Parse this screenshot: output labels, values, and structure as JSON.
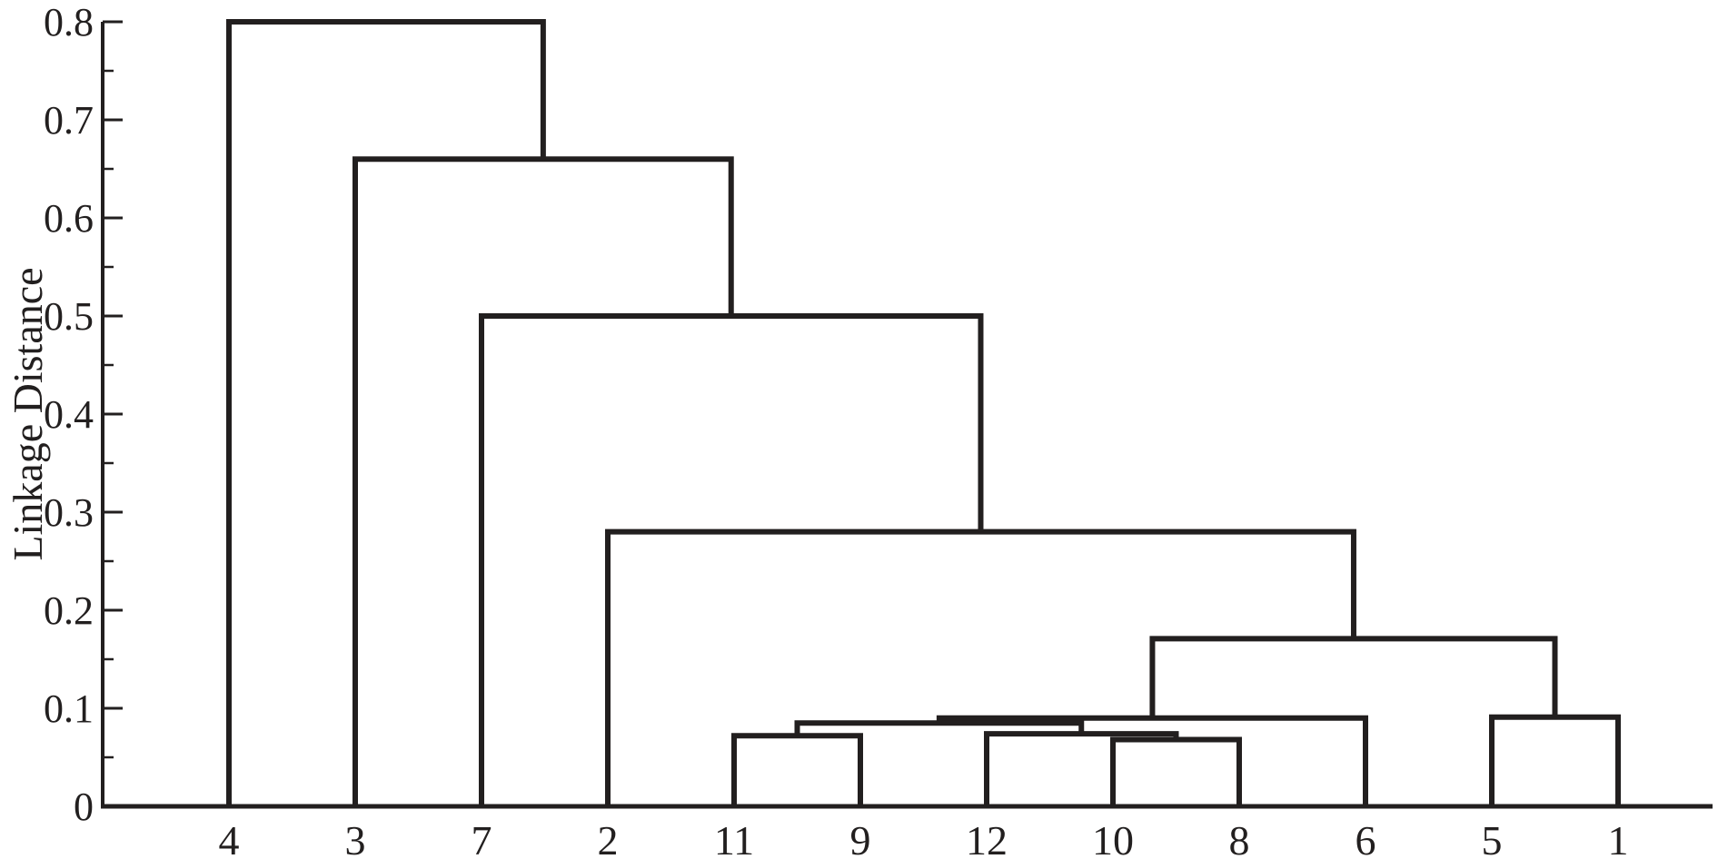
{
  "figure": {
    "background": "#ffffff",
    "line_color": "#221f1f",
    "axis_color": "#221f1f"
  },
  "chart_data": {
    "type": "dendrogram",
    "orientation": "top",
    "title": "",
    "xlabel": "",
    "ylabel": "Linkage Distance",
    "ylim": [
      0,
      0.8
    ],
    "grid": false,
    "legend": "none",
    "leaves": [
      "4",
      "3",
      "7",
      "2",
      "11",
      "9",
      "12",
      "10",
      "8",
      "6",
      "5",
      "1"
    ],
    "yticks": {
      "values": [
        0,
        0.1,
        0.2,
        0.3,
        0.4,
        0.5,
        0.6,
        0.7,
        0.8
      ],
      "labels": [
        "0",
        "0.1",
        "0.2",
        "0.3",
        "0.4",
        "0.5",
        "0.6",
        "0.7",
        "0.8"
      ],
      "minor_step": 0.05
    },
    "merges": [
      {
        "id": "m_c",
        "left": "10",
        "right": "8",
        "height": 0.068
      },
      {
        "id": "m_a",
        "left": "11",
        "right": "9",
        "height": 0.072
      },
      {
        "id": "m_b",
        "left": "12",
        "right": "m_c",
        "height": 0.074
      },
      {
        "id": "m_d",
        "left": "m_a",
        "right": "m_b",
        "height": 0.085
      },
      {
        "id": "m_e",
        "left": "m_d",
        "right": "6",
        "height": 0.09
      },
      {
        "id": "m_f",
        "left": "5",
        "right": "1",
        "height": 0.091
      },
      {
        "id": "m_g",
        "left": "m_e",
        "right": "m_f",
        "height": 0.171
      },
      {
        "id": "m_h",
        "left": "2",
        "right": "m_g",
        "height": 0.28
      },
      {
        "id": "m_i",
        "left": "7",
        "right": "m_h",
        "height": 0.5
      },
      {
        "id": "m_j",
        "left": "3",
        "right": "m_i",
        "height": 0.66
      },
      {
        "id": "m_k",
        "left": "4",
        "right": "m_j",
        "height": 0.8
      }
    ]
  }
}
